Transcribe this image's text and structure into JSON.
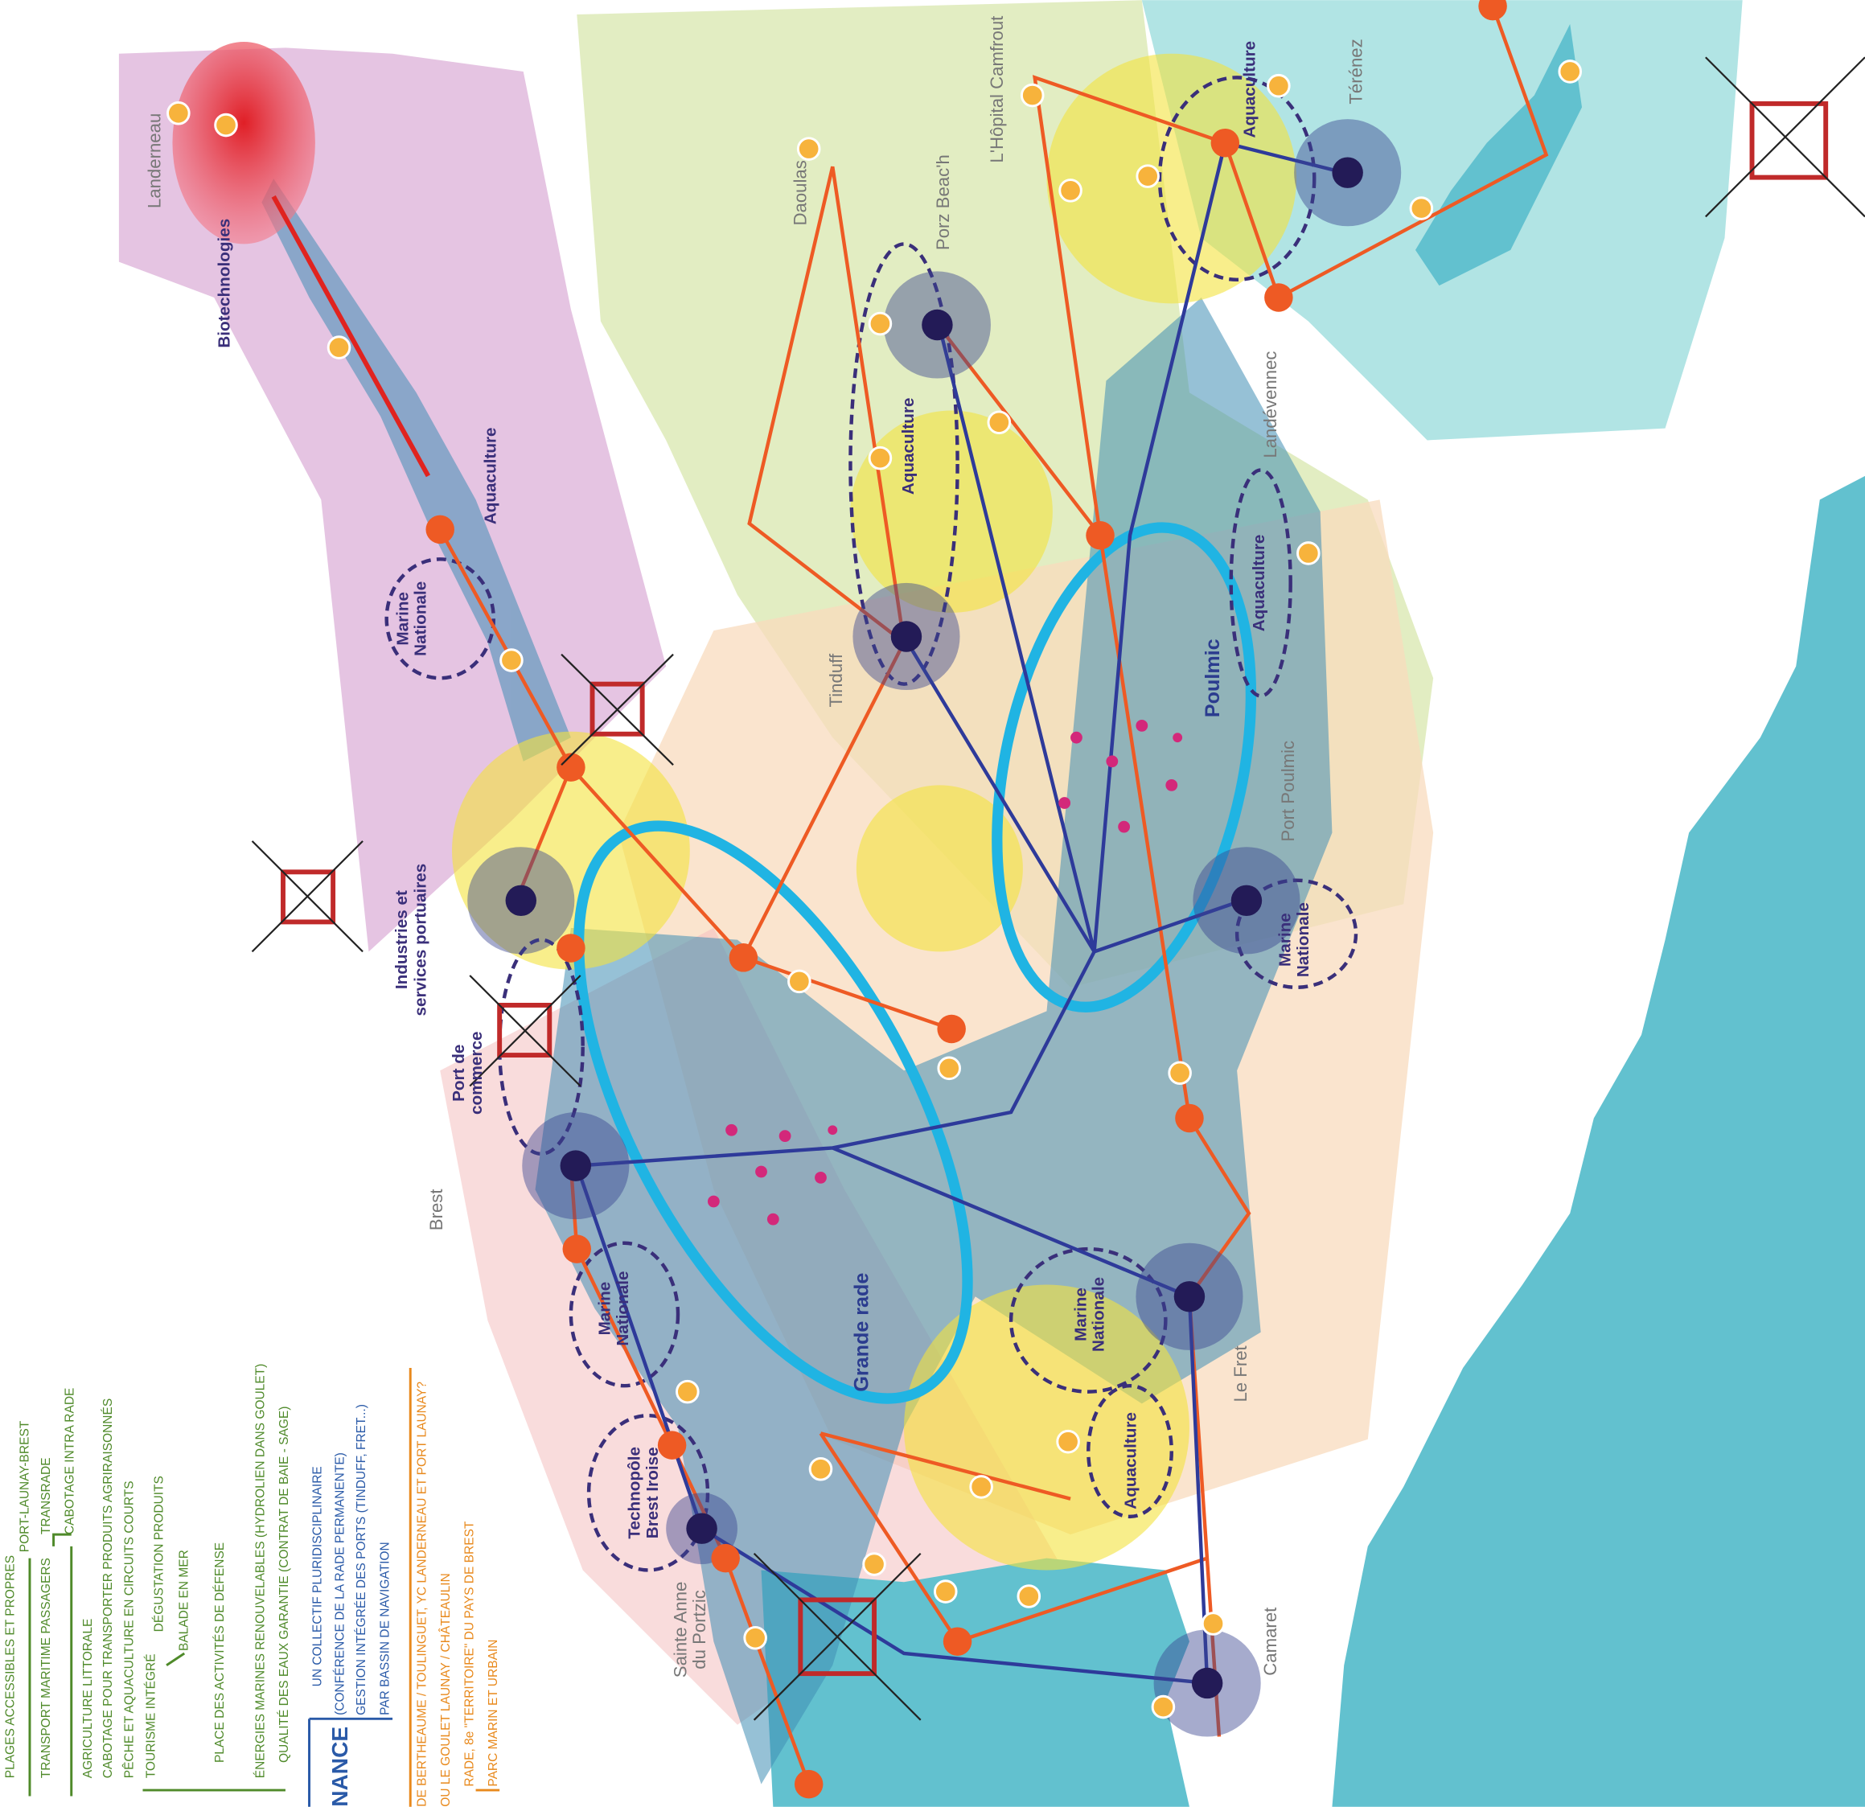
{
  "labels": {
    "landerneau": "Landerneau",
    "biotechnologies": "Biotechnologies",
    "aquaculture_elorn": "Aquaculture",
    "marine_nationale_elorn": [
      "Marine",
      "Nationale"
    ],
    "industries": [
      "Industries et",
      "services portuaires"
    ],
    "port_commerce": [
      "Port de",
      "commerce"
    ],
    "brest": "Brest",
    "marine_nationale_brest": [
      "Marine",
      "Nationale"
    ],
    "technopole": [
      "Technopôle",
      "Brest Iroise"
    ],
    "sainte_anne": [
      "Sainte Anne",
      "du Portzic"
    ],
    "grande_rade": "Grande rade",
    "poulmic": "Poulmic",
    "aquaculture_daoulas": "Aquaculture",
    "aquaculture_landevennec": "Aquaculture",
    "aquaculture_terenez": "Aquaculture",
    "aquaculture_fret": "Aquaculture",
    "marine_nationale_poulmic": [
      "Marine",
      "Nationale"
    ],
    "marine_nationale_fret": [
      "Marine",
      "Nationale"
    ],
    "port_poulmic": "Port Poulmic",
    "landevennec": "Landévennec",
    "tinduff": "Tinduff",
    "daoulas": "Daoulas",
    "porz_beach": "Porz Beac'h",
    "hopital_camfrout": "L'Hôpital Camfrout",
    "terenez": "Térénez",
    "le_fret": "Le Fret",
    "camaret": "Camaret"
  },
  "legend": {
    "green": [
      "PLAGES ACCESSIBLES ET PROPRES",
      "TRANSPORT MARITIME PASSAGERS",
      "PORT-LAUNAY-BREST",
      "TRANSRADE",
      "CABOTAGE INTRA RADE",
      "AGRICULTURE LITTORALE",
      "CABOTAGE POUR TRANSPORTER PRODUITS AGRIRAISONNÉS",
      "PÊCHE ET AQUACULTURE EN CIRCUITS COURTS",
      "TOURISME INTÉGRÉ",
      "DÉGUSTATION PRODUITS",
      "BALADE EN MER",
      "PLACE DES ACTIVITÉS DE DÉFENSE",
      "ÉNERGIES MARINES RENOUVELABLES (HYDROLIEN DANS GOULET)",
      "QUALITÉ DES EAUX GARANTIE (CONTRAT DE BAIE - SAGE)"
    ],
    "blue_title": "NANCE",
    "blue": [
      "UN COLLECTIF PLURIDISCIPLINAIRE",
      "(CONFÉRENCE DE LA RADE PERMANENTE)",
      "GESTION INTÉGRÉE DES PORTS (TINDUFF, FRET...)",
      "PAR BASSIN DE NAVIGATION"
    ],
    "orange": [
      "DE BERTHEAUME / TOULINGUET, YC LANDERNEAU ET PORT LAUNAY?",
      "OU LE GOULET LAUNAY / CHÂTEAULIN",
      "RADE, 8e \"TERRITOIRE\" DU PAYS DE BREST",
      "PARC MARIN ET URBAIN"
    ]
  }
}
